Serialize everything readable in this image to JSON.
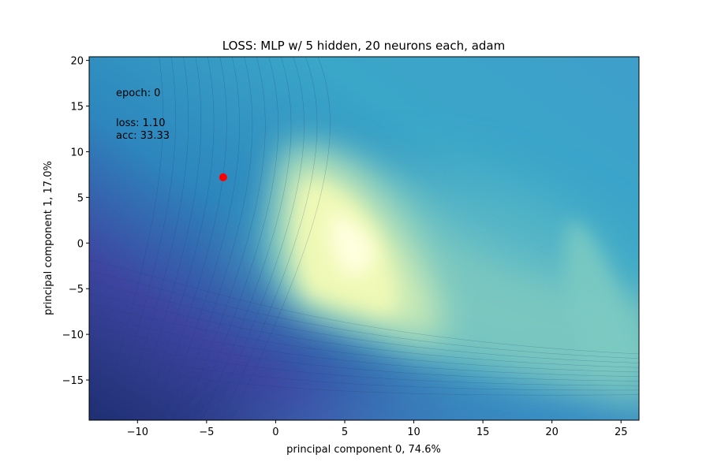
{
  "chart_data": {
    "type": "contour",
    "title": "LOSS: MLP w/ 5 hidden, 20 neurons each, adam",
    "xlabel": "principal component 0, 74.6%",
    "ylabel": "principal component 1, 17.0%",
    "xlim": [
      -13.5,
      26.3
    ],
    "ylim": [
      -19.4,
      20.4
    ],
    "xticks": [
      -10,
      -5,
      0,
      5,
      10,
      15,
      20,
      25
    ],
    "xtick_labels": [
      "−10",
      "−5",
      "0",
      "5",
      "10",
      "15",
      "20",
      "25"
    ],
    "yticks": [
      -15,
      -10,
      -5,
      0,
      5,
      10,
      15,
      20
    ],
    "ytick_labels": [
      "−15",
      "−10",
      "−5",
      "0",
      "5",
      "10",
      "15",
      "20"
    ],
    "colormap": [
      "#ffffd9",
      "#edf8b1",
      "#c7e9b4",
      "#7fcdbb",
      "#41b6c4",
      "#1d91c0",
      "#225ea8",
      "#253494",
      "#081d58"
    ],
    "loss_minimum_region": {
      "x": 6,
      "y": 0
    },
    "marker": {
      "x": -3.8,
      "y": 7.2,
      "color": "#ff0000"
    },
    "annotations": {
      "epoch": "epoch: 0",
      "loss": "loss:  1.10",
      "acc": "acc:  33.33"
    }
  }
}
